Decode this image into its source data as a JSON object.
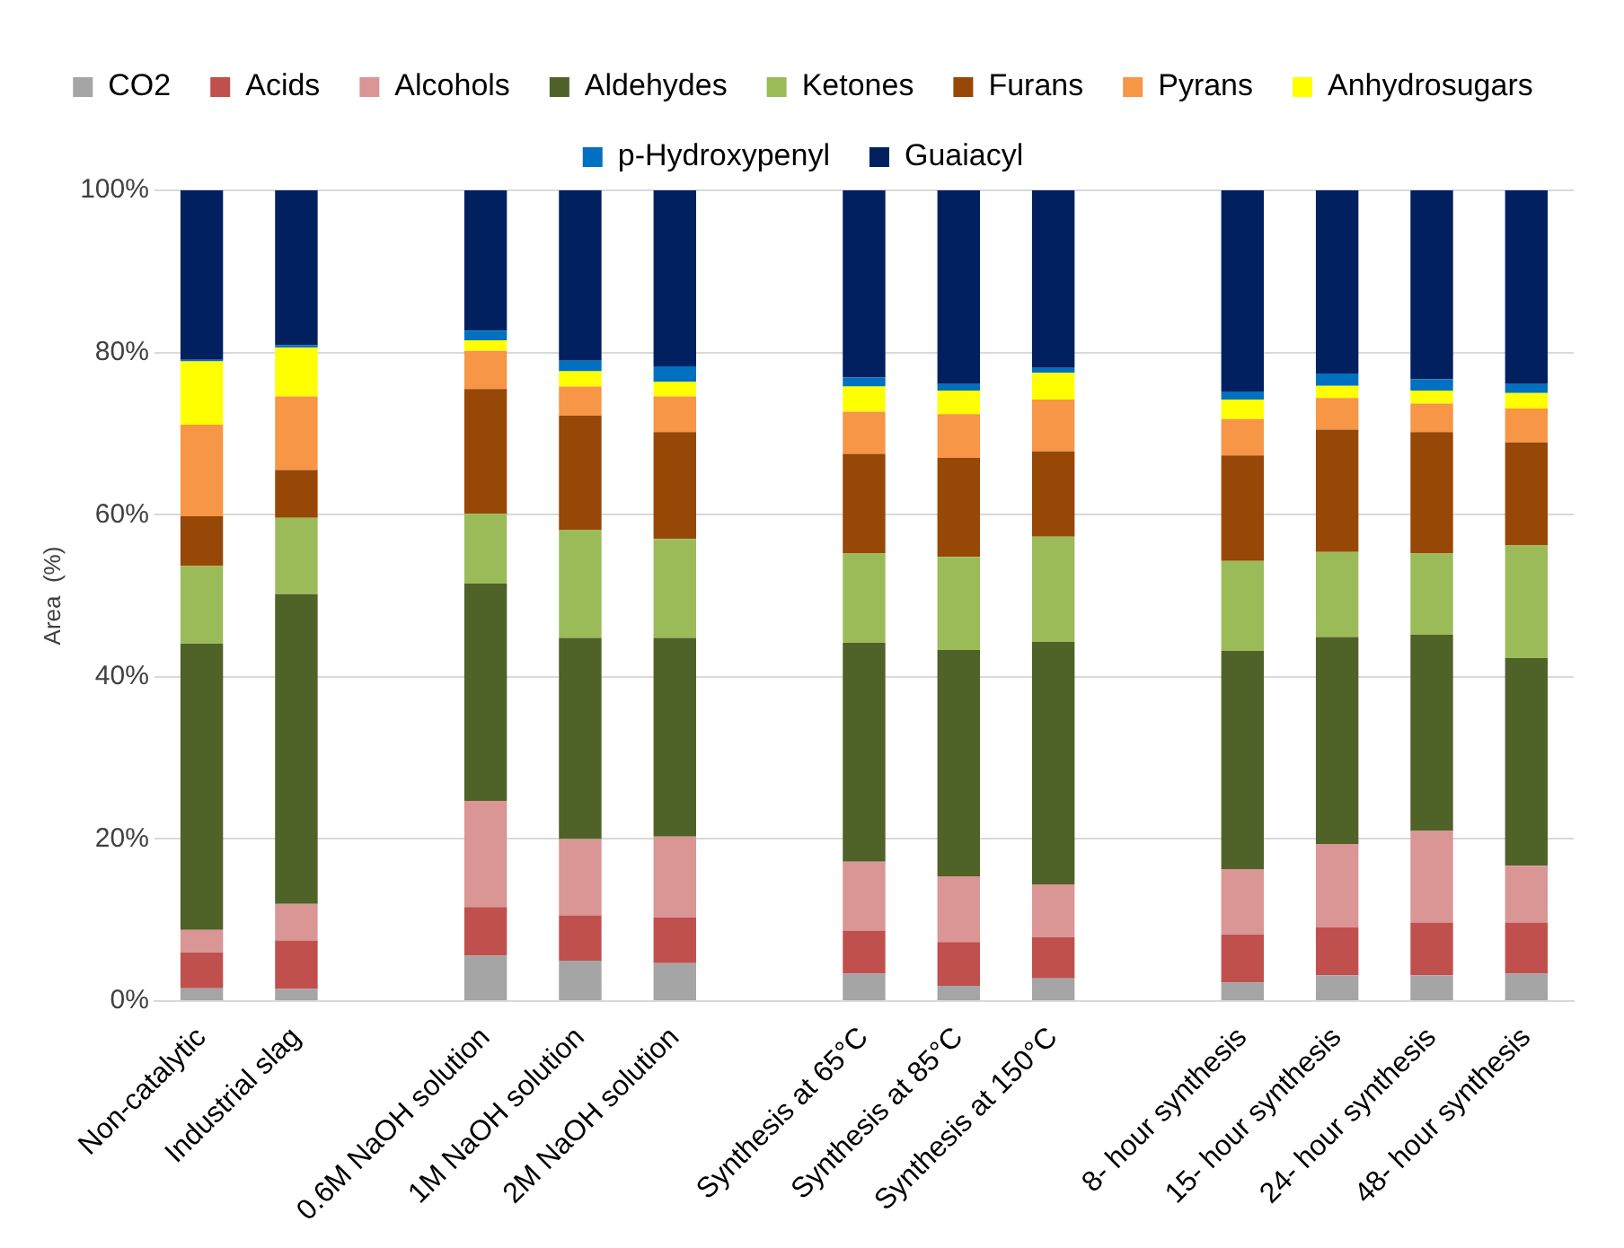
{
  "chart_data": {
    "type": "bar",
    "stacked": true,
    "ylabel": "Area  (%)",
    "categories": [
      "Non-catalytic",
      "Industrial slag",
      null,
      "0.6M NaOH solution",
      "1M NaOH solution",
      "2M NaOH solution",
      null,
      "Synthesis at 65°C",
      "Synthesis at 85°C",
      "Synthesis at 150°C",
      null,
      "8- hour synthesis",
      "15- hour synthesis",
      "24- hour synthesis",
      "48- hour synthesis"
    ],
    "series": [
      {
        "name": "CO2",
        "color": "#a5a5a5",
        "values": [
          1.6,
          1.5,
          null,
          5.6,
          5.0,
          4.7,
          null,
          3.4,
          1.9,
          2.8,
          null,
          2.3,
          3.2,
          3.2,
          3.4
        ]
      },
      {
        "name": "Acids",
        "color": "#c0504d",
        "values": [
          4.4,
          6.0,
          null,
          6.0,
          5.6,
          5.6,
          null,
          5.3,
          5.4,
          5.1,
          null,
          5.9,
          5.9,
          6.5,
          6.3
        ]
      },
      {
        "name": "Alcohols",
        "color": "#d99694",
        "values": [
          2.8,
          4.5,
          null,
          13.1,
          9.4,
          10.0,
          null,
          8.5,
          8.1,
          6.5,
          null,
          8.1,
          10.3,
          11.3,
          7.0
        ]
      },
      {
        "name": "Aldehydes",
        "color": "#4f6228",
        "values": [
          35.3,
          38.2,
          null,
          26.8,
          24.8,
          24.5,
          null,
          27.0,
          27.9,
          29.9,
          null,
          26.9,
          25.5,
          24.2,
          25.6
        ]
      },
      {
        "name": "Ketones",
        "color": "#9bbb59",
        "values": [
          9.6,
          9.4,
          null,
          8.6,
          13.3,
          12.2,
          null,
          11.0,
          11.5,
          13.0,
          null,
          11.1,
          10.5,
          10.0,
          13.9
        ]
      },
      {
        "name": "Furans",
        "color": "#974706",
        "values": [
          6.1,
          5.9,
          null,
          15.4,
          14.1,
          13.2,
          null,
          12.3,
          12.2,
          10.5,
          null,
          13.0,
          15.1,
          15.0,
          12.7
        ]
      },
      {
        "name": "Pyrans",
        "color": "#f79646",
        "values": [
          11.3,
          9.1,
          null,
          4.7,
          3.6,
          4.4,
          null,
          5.2,
          5.4,
          6.4,
          null,
          4.5,
          3.9,
          3.5,
          4.2
        ]
      },
      {
        "name": "Anhydrosugars",
        "color": "#ffff00",
        "values": [
          7.8,
          6.0,
          null,
          1.3,
          1.9,
          1.8,
          null,
          3.1,
          2.9,
          3.3,
          null,
          2.4,
          1.5,
          1.6,
          1.9
        ]
      },
      {
        "name": "p-Hydroxypenyl",
        "color": "#0070c0",
        "values": [
          0.2,
          0.3,
          null,
          1.2,
          1.3,
          1.9,
          null,
          1.1,
          0.8,
          0.6,
          null,
          1.0,
          1.5,
          1.4,
          1.1
        ]
      },
      {
        "name": "Guaiacyl",
        "color": "#002060",
        "values": [
          20.9,
          19.1,
          null,
          17.3,
          21.0,
          21.7,
          null,
          23.1,
          23.9,
          21.9,
          null,
          24.8,
          22.6,
          23.3,
          23.9
        ]
      }
    ],
    "ylim": [
      0,
      100
    ],
    "yticks": [
      {
        "value": 0,
        "label": "0%"
      },
      {
        "value": 20,
        "label": "20%"
      },
      {
        "value": 40,
        "label": "40%"
      },
      {
        "value": 60,
        "label": "60%"
      },
      {
        "value": 80,
        "label": "80%"
      },
      {
        "value": 100,
        "label": "100%"
      }
    ],
    "grid": "y",
    "legend": "top"
  }
}
